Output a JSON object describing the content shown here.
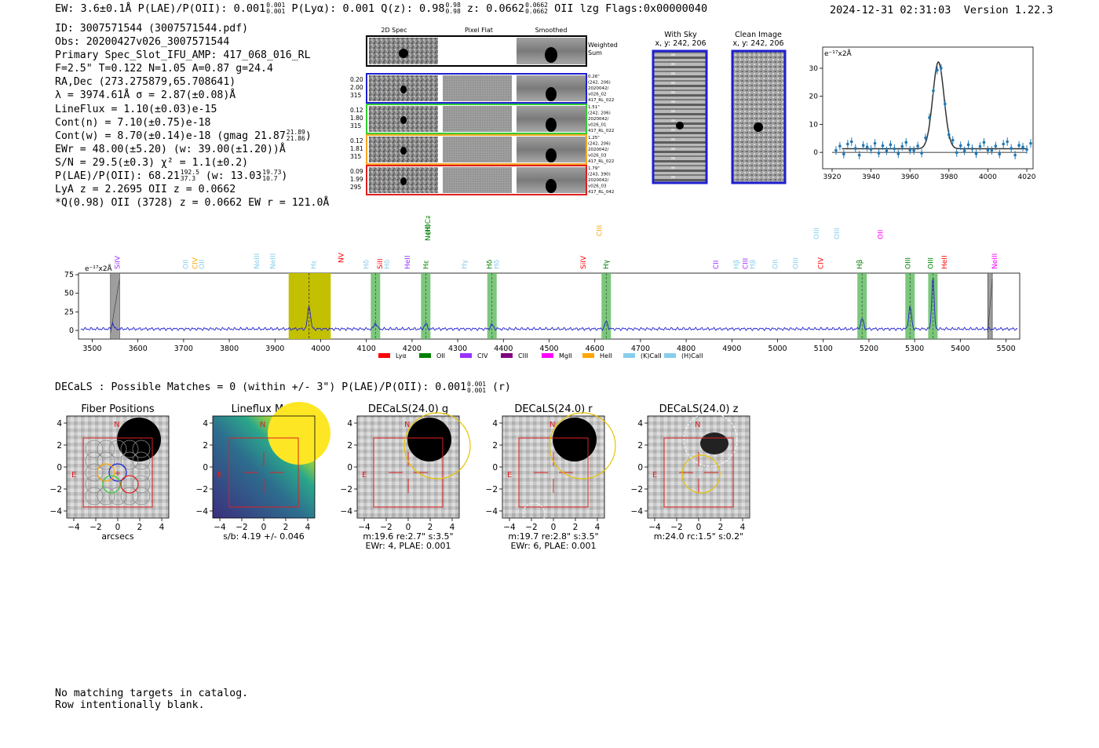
{
  "header": {
    "summary_left": "EW: 3.6±0.1Å  P(LAE)/P(OII): 0.001",
    "plae_hi": "0.001",
    "plae_lo": "0.001",
    "summary_mid": "  P(Lyα): 0.001  Q(z): 0.98",
    "qz_hi": "0.98",
    "qz_lo": "0.98",
    "z_text": "  z: 0.0662",
    "z_hi": "0.0662",
    "z_lo": "0.0662",
    "summary_end": " OII   lzg   Flags:0x00000040",
    "datetime": "2024-12-31 02:31:03",
    "version": "Version 1.22.3"
  },
  "info": {
    "id": "ID: 3007571544 (3007571544.pdf)",
    "obs": "Obs: 20200427v026_3007571544",
    "primary": "Primary Spec_Slot_IFU_AMP: 417_068_016_RL",
    "params": "F=2.5\"  T=0.122  N=1.05  A=0.87  g=24.4",
    "radec": "RA,Dec (273.275879,65.708641)",
    "lambda": "λ = 3974.61Å  σ = 2.87(±0.08)Å",
    "lineflux": "LineFlux = 1.10(±0.03)e-15",
    "contn": "Cont(n) = 7.10(±0.75)e-18",
    "contw": "Cont(w) = 8.70(±0.14)e-18 (gmag 21.87",
    "contw_hi": "21.89",
    "contw_lo": "21.86",
    "contw_end": ")",
    "ewr": "EWr = 48.00(±5.20) (w: 39.00(±1.20))Å",
    "sn": "S/N = 29.5(±0.3)  χ² = 1.1(±0.2)",
    "plae": "P(LAE)/P(OII): 68.21",
    "plae_hi": "192.5",
    "plae_lo": "37.3",
    "plae_w": " (w: 13.03",
    "plae_w_hi": "19.73",
    "plae_w_lo": "10.7",
    "plae_end": ")",
    "lya": "LyA z = 2.2695  OII z = 0.0662",
    "q": "*Q(0.98) OII (3728) z = 0.0662  EW r = 121.0Å"
  },
  "cutouts": {
    "col_headers": [
      "2D Spec",
      "Pixel Flat",
      "Smoothed"
    ],
    "weighted_sum": [
      "Weighted",
      "Sum"
    ],
    "rows": [
      {
        "left": [
          "0.20",
          "2.00",
          "315"
        ],
        "right": [
          "0.26\"",
          "(242, 206)",
          "2020042/",
          "v026_02",
          "417_RL_022"
        ],
        "color": "#1f1fd0"
      },
      {
        "left": [
          "0.12",
          "1.80",
          "315"
        ],
        "right": [
          "1.51\"",
          "(242, 206)",
          "2020042/",
          "v026_01",
          "417_RL_022"
        ],
        "color": "#33cc33"
      },
      {
        "left": [
          "0.12",
          "1.81",
          "315"
        ],
        "right": [
          "1.25\"",
          "(242, 206)",
          "2020042/",
          "v026_03",
          "417_RL_022"
        ],
        "color": "#f5a623"
      },
      {
        "left": [
          "0.09",
          "1.99",
          "295"
        ],
        "right": [
          "1.79\"",
          "(243, 390)",
          "2020042/",
          "v026_03",
          "417_RL_042"
        ],
        "color": "#e02020"
      }
    ]
  },
  "sky_panels": {
    "with_sky_title": "With Sky",
    "with_sky_xy": "x, y: 242, 206",
    "clean_title": "Clean Image",
    "clean_xy": "x, y: 242, 206"
  },
  "zoom_chart": {
    "unit_label": "e⁻¹⁷x2Å",
    "xticks": [
      "3920",
      "3940",
      "3960",
      "3980",
      "4000",
      "4020"
    ],
    "yticks": [
      "0",
      "10",
      "20",
      "30"
    ]
  },
  "full_spectrum": {
    "unit_label": "e⁻¹⁷x2Å",
    "yticks": [
      "0",
      "25",
      "50",
      "75"
    ],
    "xticks": [
      "3500",
      "3600",
      "3700",
      "3800",
      "3900",
      "4000",
      "4100",
      "4200",
      "4300",
      "4400",
      "4500",
      "4600",
      "4700",
      "4800",
      "4900",
      "5000",
      "5100",
      "5200",
      "5300",
      "5400",
      "5500"
    ],
    "legend": [
      {
        "label": "Lyα",
        "color": "#ff0000"
      },
      {
        "label": "OII",
        "color": "#008000"
      },
      {
        "label": "CIV",
        "color": "#9b30ff"
      },
      {
        "label": "CIII",
        "color": "#800080"
      },
      {
        "label": "MgII",
        "color": "#ff00ff"
      },
      {
        "label": "HeII",
        "color": "#ffa500"
      },
      {
        "label": "(K)CaII",
        "color": "#87ceeb"
      },
      {
        "label": "(H)CaII",
        "color": "#87ceeb"
      }
    ],
    "line_labels": [
      {
        "t": "SiIV",
        "c": "#9b30ff"
      },
      {
        "t": "OII",
        "c": "#87ceeb"
      },
      {
        "t": "CIV",
        "c": "#ffa500"
      },
      {
        "t": "OII",
        "c": "#87ceeb"
      },
      {
        "t": "NeIII",
        "c": "#87ceeb"
      },
      {
        "t": "NeIII",
        "c": "#87ceeb"
      },
      {
        "t": "Hε",
        "c": "#87ceeb"
      },
      {
        "t": "NV",
        "c": "#ff0000"
      },
      {
        "t": "Hδ",
        "c": "#87ceeb"
      },
      {
        "t": "SiII",
        "c": "#ff0000"
      },
      {
        "t": "Hδ",
        "c": "#87ceeb"
      },
      {
        "t": "HeII",
        "c": "#9b30ff"
      },
      {
        "t": "Hε",
        "c": "#008000"
      },
      {
        "t": "NeIII",
        "c": "#008000"
      },
      {
        "t": "(H)CaII",
        "c": "#008000"
      },
      {
        "t": "Hγ",
        "c": "#87ceeb"
      },
      {
        "t": "Hδ",
        "c": "#008000"
      },
      {
        "t": "Hδ",
        "c": "#87ceeb"
      },
      {
        "t": "SiIV",
        "c": "#ff0000"
      },
      {
        "t": "Hγ",
        "c": "#008000"
      },
      {
        "t": "CIII",
        "c": "#ffa500"
      },
      {
        "t": "CII",
        "c": "#9b30ff"
      },
      {
        "t": "Hβ",
        "c": "#87ceeb"
      },
      {
        "t": "CIII",
        "c": "#9b30ff"
      },
      {
        "t": "Hβ",
        "c": "#87ceeb"
      },
      {
        "t": "OII",
        "c": "#87ceeb"
      },
      {
        "t": "OIII",
        "c": "#87ceeb"
      },
      {
        "t": "OIII",
        "c": "#87ceeb"
      },
      {
        "t": "CIV",
        "c": "#ff0000"
      },
      {
        "t": "OIII",
        "c": "#87ceeb"
      },
      {
        "t": "Hβ",
        "c": "#008000"
      },
      {
        "t": "OII",
        "c": "#ff00ff"
      },
      {
        "t": "OIII",
        "c": "#008000"
      },
      {
        "t": "OIII",
        "c": "#008000"
      },
      {
        "t": "HeII",
        "c": "#ff0000"
      },
      {
        "t": "NeIII",
        "c": "#ff00ff"
      }
    ]
  },
  "decals": {
    "line": "DECaLS : Possible Matches = 0 (within +/- 3\")  P(LAE)/P(OII): 0.001",
    "plae_hi": "0.001",
    "plae_lo": "0.001",
    "line_end": " (r)",
    "panels": [
      {
        "title": "Fiber Positions",
        "caption1": "arcsecs",
        "caption2": ""
      },
      {
        "title": "Lineflux Map",
        "caption1": "s/b: 4.19 +/- 0.046",
        "caption2": ""
      },
      {
        "title": "DECaLS(24.0) g",
        "caption1": "m:19.6  re:2.7\"  s:3.5\"",
        "caption2": "EWr: 4, PLAE: 0.001"
      },
      {
        "title": "DECaLS(24.0) r",
        "caption1": "m:19.7  re:2.8\"  s:3.5\"",
        "caption2": "EWr: 6, PLAE: 0.001"
      },
      {
        "title": "DECaLS(24.0) z",
        "caption1": "m:24.0 rc:1.5\"  s:0.2\"",
        "caption2": ""
      }
    ],
    "ticks": [
      "−4",
      "−2",
      "0",
      "2",
      "4"
    ],
    "north": "N",
    "east": "E"
  },
  "footer": {
    "line1": "No matching targets in catalog.",
    "line2": "Row intentionally blank."
  }
}
